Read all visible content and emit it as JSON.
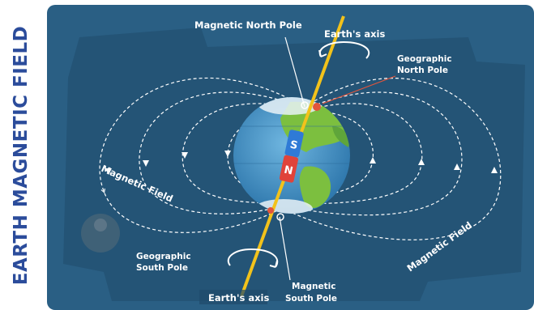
{
  "title": "EARTH MAGNETIC FIELD",
  "labels": {
    "magnetic_north_pole": "Magnetic North Pole",
    "earth_axis_top": "Earth's axis",
    "geographic_north_pole_1": "Geographic",
    "geographic_north_pole_2": "North Pole",
    "magnetic_field_left": "Magnetic Field",
    "magnetic_field_right": "Magnetic Field",
    "geographic_south_pole_1": "Geographic",
    "geographic_south_pole_2": "South Pole",
    "earth_axis_bottom": "Earth's axis",
    "magnetic_south_pole_1": "Magnetic",
    "magnetic_south_pole_2": "South Pole",
    "magnet_s": "S",
    "magnet_n": "N"
  },
  "colors": {
    "title": "#2b4c9b",
    "panel": "#2a5f84",
    "panel_dark": "#1f4a6b",
    "ocean": "#4f9ccf",
    "land": "#7cbf3f",
    "axis": "#f2c21b",
    "magnet_s": "#2f7ad6",
    "magnet_n": "#e0433a",
    "pole_marker": "#e2553c"
  }
}
